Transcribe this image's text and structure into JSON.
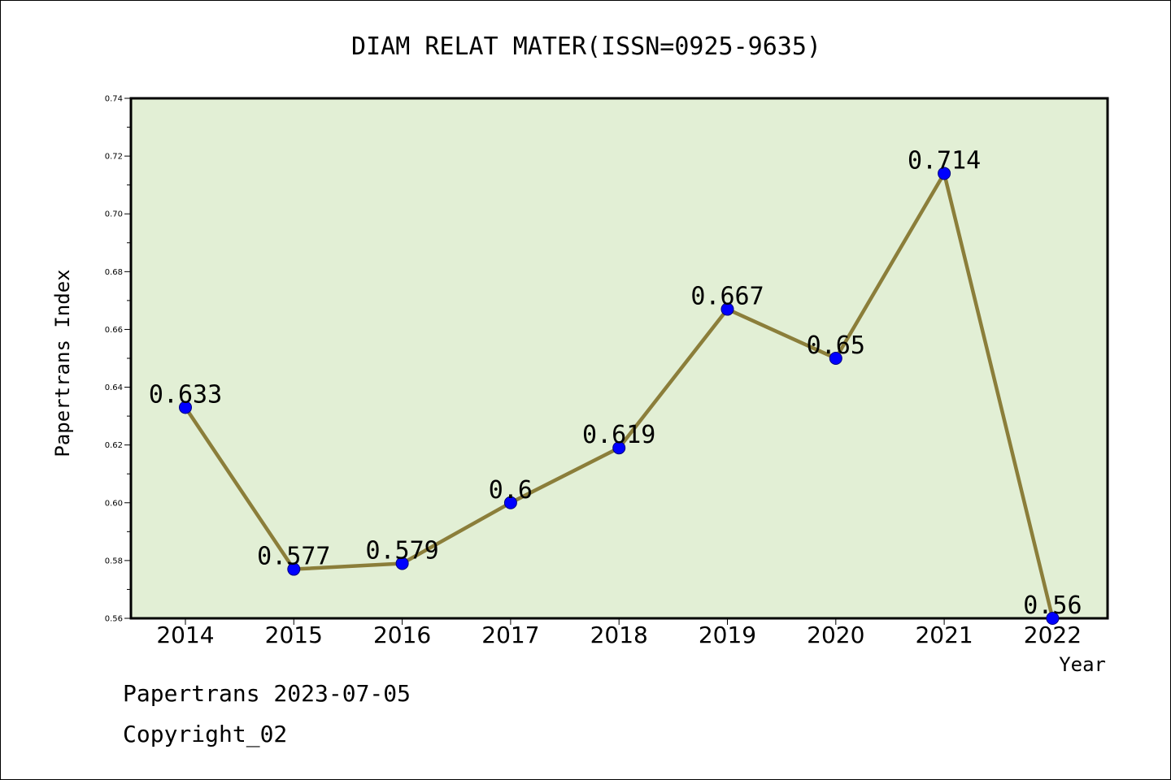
{
  "chart_data": {
    "type": "line",
    "title": "DIAM RELAT MATER(ISSN=0925-9635)",
    "xlabel": "Year",
    "ylabel": "Papertrans Index",
    "categories": [
      "2014",
      "2015",
      "2016",
      "2017",
      "2018",
      "2019",
      "2020",
      "2021",
      "2022"
    ],
    "values": [
      0.633,
      0.577,
      0.579,
      0.6,
      0.619,
      0.667,
      0.65,
      0.714,
      0.56
    ],
    "data_labels": [
      "0.633",
      "0.577",
      "0.579",
      "0.6",
      "0.619",
      "0.667",
      "0.65",
      "0.714",
      "0.56"
    ],
    "ylim": [
      0.56,
      0.74
    ],
    "yticks": [
      "0.56",
      "0.58",
      "0.60",
      "0.62",
      "0.64",
      "0.66",
      "0.68",
      "0.70",
      "0.72",
      "0.74"
    ],
    "grid": false,
    "legend": "none",
    "colors": {
      "plot_background": "#e2efd5",
      "line": "#8b7e3a",
      "marker": "#0000ff",
      "marker_edge": "#000080"
    }
  },
  "footer": {
    "date_line": "Papertrans 2023-07-05",
    "copyright_line": "Copyright_02"
  }
}
